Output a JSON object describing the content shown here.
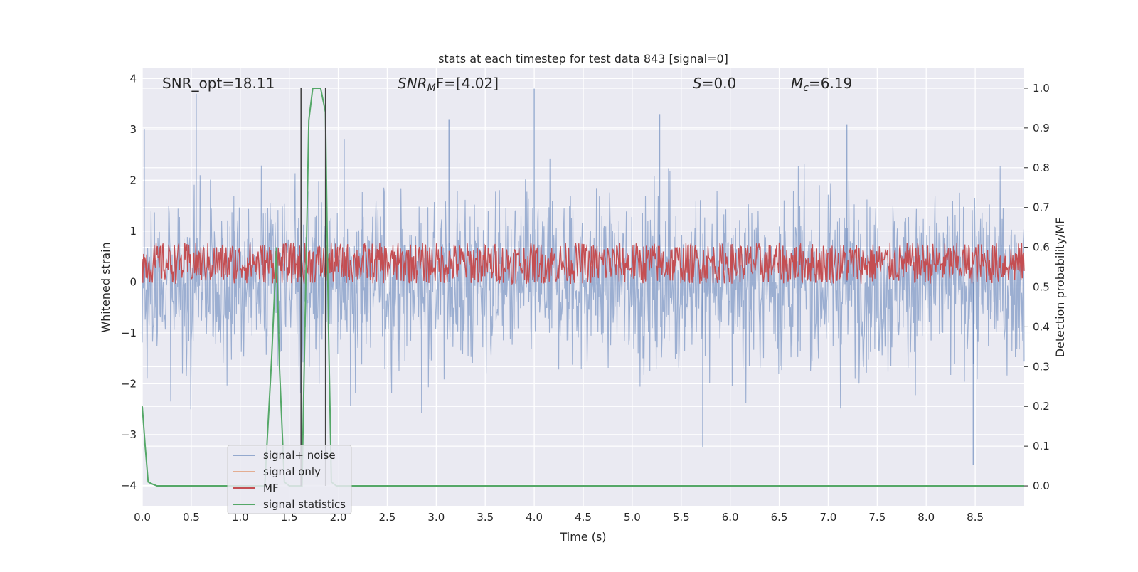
{
  "chart_data": {
    "type": "line",
    "title": "stats at each timestep for test data 843 [signal=0]",
    "xlabel": "Time (s)",
    "ylabel_left": "Whitened strain",
    "ylabel_right": "Detection probability/MF",
    "xlim": [
      0.0,
      9.0
    ],
    "ylim_left": [
      -4.4,
      4.2
    ],
    "ylim_right": [
      -0.05,
      1.05
    ],
    "x_ticks": [
      "0.0",
      "0.5",
      "1.0",
      "1.5",
      "2.0",
      "2.5",
      "3.0",
      "3.5",
      "4.0",
      "4.5",
      "5.0",
      "5.5",
      "6.0",
      "6.5",
      "7.0",
      "7.5",
      "8.0",
      "8.5"
    ],
    "y_ticks_left": [
      "4",
      "3",
      "2",
      "1",
      "0",
      "−1",
      "−2",
      "−3",
      "−4"
    ],
    "y_ticks_right": [
      "1.0",
      "0.9",
      "0.8",
      "0.7",
      "0.6",
      "0.5",
      "0.4",
      "0.3",
      "0.2",
      "0.1",
      "0.0"
    ],
    "grid": true,
    "legend_position": "lower-left",
    "annotations": {
      "snr_opt": "SNR_opt=18.11",
      "snr_mf_main": "SNR",
      "snr_mf_sub": "M",
      "snr_mf_rest": "F=[4.02]",
      "s_main": "S",
      "s_rest": "=0.0",
      "mc_main": "M",
      "mc_sub": "c",
      "mc_rest": "=6.19"
    },
    "series": [
      {
        "name": "signal+ noise",
        "color": "#4c72b0",
        "axis": "left",
        "description_values": "white-noise strain between about -3.6 and 3.8, envelope ~ +/-2",
        "band": [
          -2.0,
          2.0
        ],
        "peaks_x": [
          0.02,
          0.55,
          2.06,
          3.13,
          4.0,
          5.28,
          5.72,
          7.19,
          8.48
        ],
        "peaks_y": [
          3.0,
          3.7,
          2.8,
          3.2,
          3.8,
          3.3,
          -3.25,
          3.1,
          -3.6
        ]
      },
      {
        "name": "signal only",
        "color": "#dd8452",
        "axis": "left",
        "values_note": "zero everywhere"
      },
      {
        "name": "MF",
        "color": "#c44e52",
        "axis": "right",
        "band": [
          0.52,
          0.6
        ],
        "mean": 0.56
      },
      {
        "name": "signal statistics",
        "color": "#55a868",
        "axis": "right",
        "x": [
          0.0,
          0.03,
          0.06,
          0.1,
          0.15,
          0.25,
          0.5,
          1.0,
          1.25,
          1.32,
          1.37,
          1.4,
          1.45,
          1.5,
          1.55,
          1.6,
          1.63,
          1.7,
          1.74,
          1.78,
          1.82,
          1.87,
          1.9,
          1.93,
          1.98,
          2.1,
          3.0,
          6.0,
          9.0
        ],
        "y": [
          0.2,
          0.1,
          0.01,
          0.005,
          0.0,
          0.0,
          0.0,
          0.0,
          0.0,
          0.32,
          0.6,
          0.3,
          0.01,
          0.0,
          0.0,
          0.0,
          0.0,
          0.92,
          1.0,
          1.0,
          1.0,
          0.94,
          0.4,
          0.01,
          0.0,
          0.0,
          0.0,
          0.0,
          0.0
        ]
      }
    ],
    "vertical_markers_x": [
      1.62,
      1.87
    ]
  }
}
